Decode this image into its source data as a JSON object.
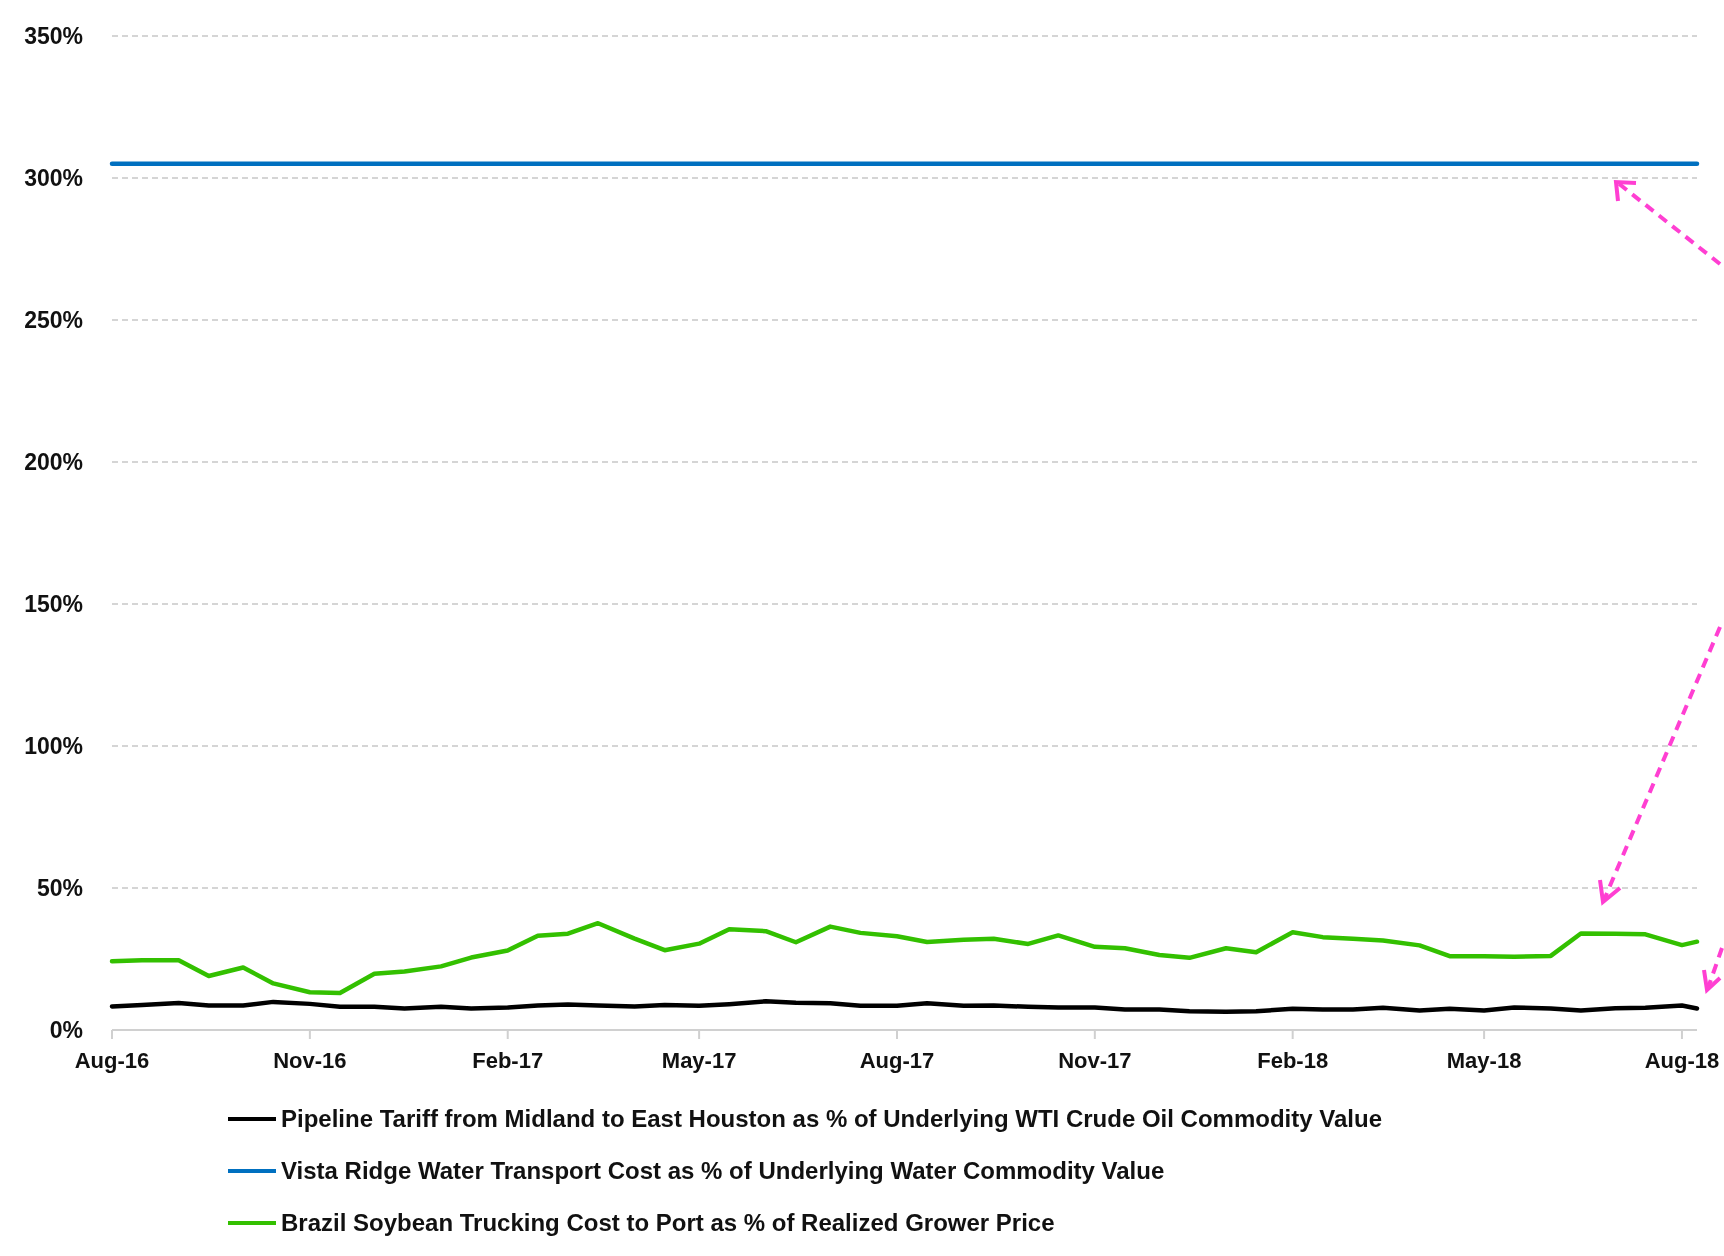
{
  "chart_data": {
    "type": "line",
    "x": [
      "2016-08-01",
      "2016-08-15",
      "2016-09-01",
      "2016-09-15",
      "2016-10-01",
      "2016-10-15",
      "2016-11-01",
      "2016-11-15",
      "2016-12-01",
      "2016-12-15",
      "2017-01-01",
      "2017-01-15",
      "2017-02-01",
      "2017-02-15",
      "2017-03-01",
      "2017-03-15",
      "2017-04-01",
      "2017-04-15",
      "2017-05-01",
      "2017-05-15",
      "2017-06-01",
      "2017-06-15",
      "2017-07-01",
      "2017-07-15",
      "2017-08-01",
      "2017-08-15",
      "2017-09-01",
      "2017-09-15",
      "2017-10-01",
      "2017-10-15",
      "2017-11-01",
      "2017-11-15",
      "2017-12-01",
      "2017-12-15",
      "2018-01-01",
      "2018-01-15",
      "2018-02-01",
      "2018-02-15",
      "2018-03-01",
      "2018-03-15",
      "2018-04-01",
      "2018-04-15",
      "2018-05-01",
      "2018-05-15",
      "2018-06-01",
      "2018-06-15",
      "2018-07-01",
      "2018-07-15",
      "2018-08-01",
      "2018-08-08"
    ],
    "series": [
      {
        "name": "Pipeline Tariff from Midland to East Houston as % of Underlying WTI Crude Oil Commodity Value",
        "color": "#000000",
        "values": [
          8.3,
          8.8,
          9.5,
          8.6,
          8.6,
          9.9,
          9.2,
          8.2,
          8.2,
          7.6,
          8.2,
          7.6,
          7.9,
          8.6,
          9.0,
          8.6,
          8.3,
          8.8,
          8.5,
          9.1,
          10.1,
          9.6,
          9.4,
          8.5,
          8.5,
          9.4,
          8.5,
          8.6,
          8.2,
          7.9,
          7.9,
          7.2,
          7.2,
          6.6,
          6.4,
          6.6,
          7.5,
          7.2,
          7.2,
          7.8,
          6.9,
          7.5,
          6.9,
          7.9,
          7.6,
          6.9,
          7.7,
          7.8,
          8.6,
          7.6
        ]
      },
      {
        "name": "Vista Ridge Water Transport Cost as % of Underlying Water Commodity Value",
        "color": "#0070c0",
        "x": [
          "2016-08-01",
          "2018-08-08"
        ],
        "values": [
          305,
          305
        ]
      },
      {
        "name": "Brazil Soybean Trucking Cost to Port as % of Realized Grower Price",
        "color": "#33c000",
        "values": [
          24.2,
          24.6,
          24.6,
          19.0,
          22.0,
          16.4,
          13.3,
          13.0,
          19.8,
          20.6,
          22.4,
          25.5,
          28.0,
          33.2,
          33.9,
          37.6,
          32.2,
          28.1,
          30.4,
          35.5,
          34.8,
          30.9,
          36.4,
          34.2,
          33.0,
          31.0,
          31.8,
          32.1,
          30.3,
          33.3,
          29.3,
          28.8,
          26.4,
          25.4,
          28.8,
          27.4,
          34.4,
          32.7,
          32.1,
          31.5,
          29.8,
          26.0,
          26.0,
          25.8,
          26.1,
          34.0,
          33.9,
          33.7,
          29.9,
          31.1
        ]
      }
    ],
    "xlim": [
      "2016-08-01",
      "2018-08-08"
    ],
    "xticks": [
      {
        "value": "2016-08-01",
        "label": "Aug-16"
      },
      {
        "value": "2016-11-01",
        "label": "Nov-16"
      },
      {
        "value": "2017-02-01",
        "label": "Feb-17"
      },
      {
        "value": "2017-05-01",
        "label": "May-17"
      },
      {
        "value": "2017-08-01",
        "label": "Aug-17"
      },
      {
        "value": "2017-11-01",
        "label": "Nov-17"
      },
      {
        "value": "2018-02-01",
        "label": "Feb-18"
      },
      {
        "value": "2018-05-01",
        "label": "May-18"
      },
      {
        "value": "2018-08-01",
        "label": "Aug-18"
      }
    ],
    "ylim": [
      0,
      350
    ],
    "yticks": [
      {
        "value": 0,
        "label": "0%"
      },
      {
        "value": 50,
        "label": "50%"
      },
      {
        "value": 100,
        "label": "100%"
      },
      {
        "value": 150,
        "label": "150%"
      },
      {
        "value": 200,
        "label": "200%"
      },
      {
        "value": 250,
        "label": "250%"
      },
      {
        "value": 300,
        "label": "300%"
      },
      {
        "value": 350,
        "label": "350%"
      }
    ],
    "grid": "y",
    "legend": "bottom",
    "marker": "none",
    "line_style": "solid"
  }
}
